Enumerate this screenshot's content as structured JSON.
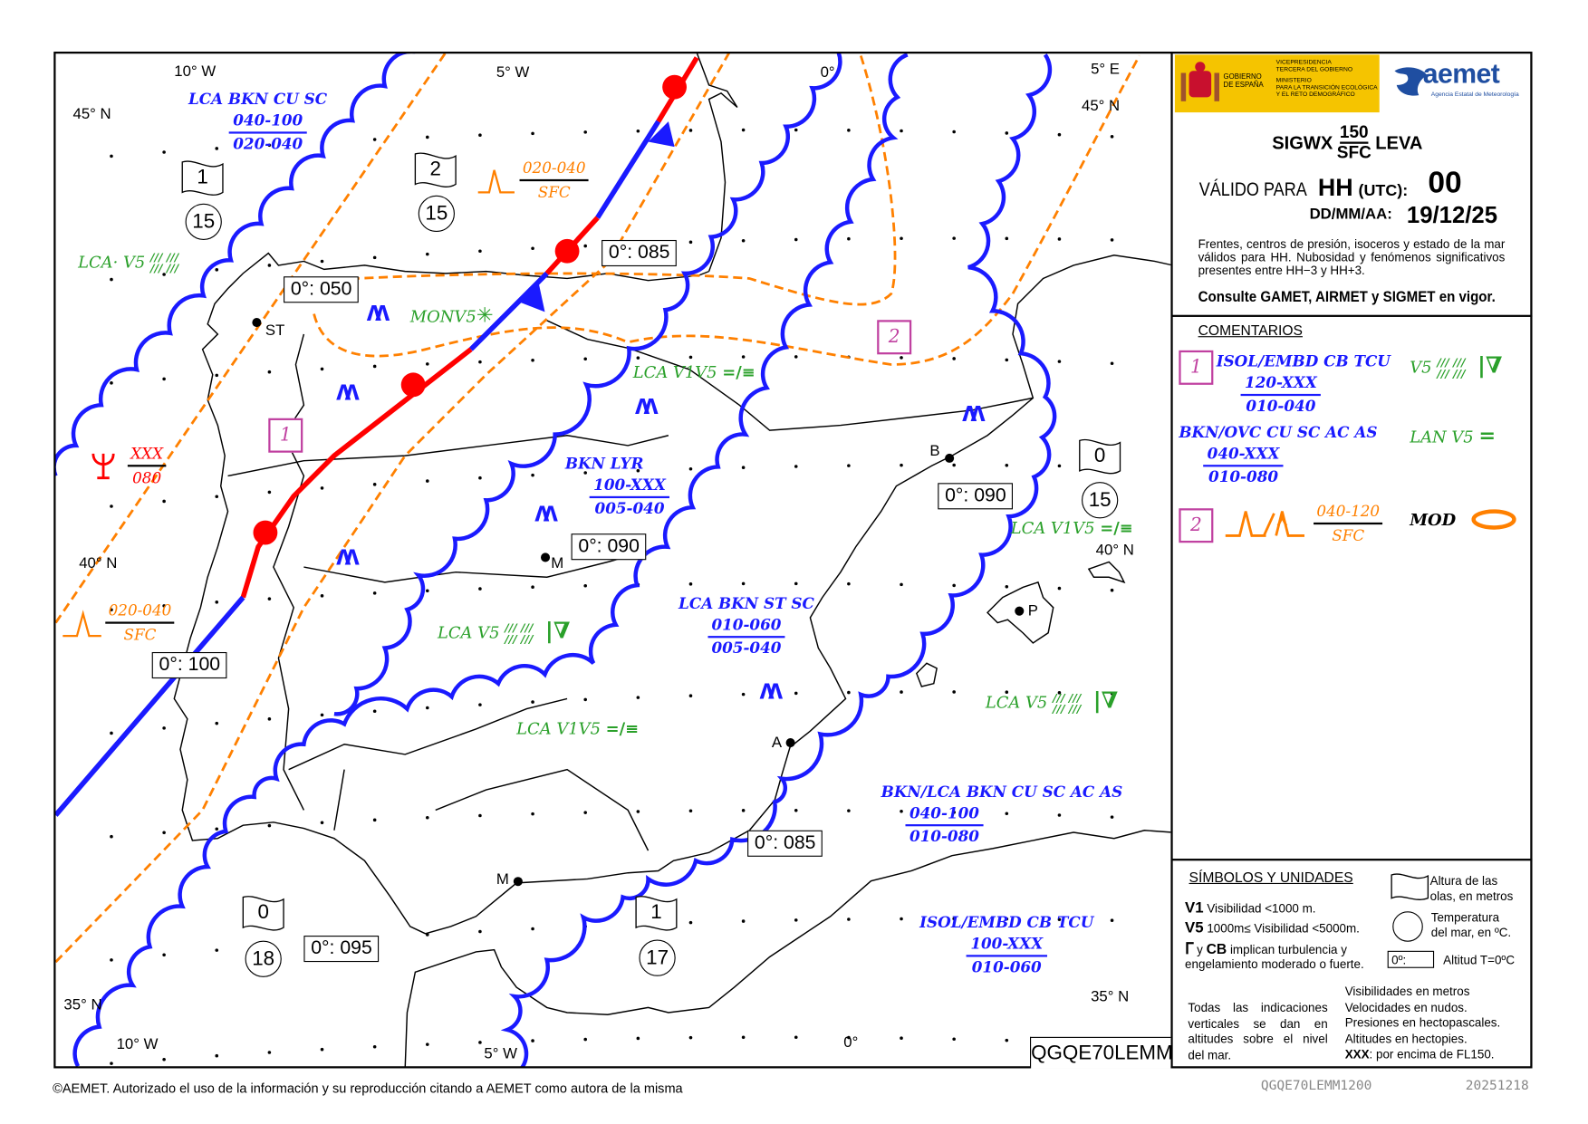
{
  "map": {
    "graticule": [
      "10° W",
      "5° W",
      "0°",
      "5° E",
      "45° N",
      "45° N",
      "40° N",
      "40° N",
      "35° N",
      "35° N",
      "10° W",
      "5° W",
      "0°"
    ],
    "cities": [
      "ST",
      "M",
      "B",
      "P",
      "A",
      "M"
    ],
    "freezing_levels": [
      "0°: 050",
      "0°: 085",
      "0°: 090",
      "0°: 090",
      "0°: 100",
      "0°: 085",
      "0°: 095"
    ],
    "sea_state": [
      {
        "wave": "1",
        "temp": "15"
      },
      {
        "wave": "2",
        "temp": "15"
      },
      {
        "wave": "0",
        "temp": "15"
      },
      {
        "wave": "0",
        "temp": "18"
      },
      {
        "wave": "1",
        "temp": "17"
      }
    ],
    "areas": [
      "1",
      "2"
    ],
    "clouds": [
      {
        "type": "LCA BKN CU SC",
        "top": "040-100",
        "base": "020-040"
      },
      {
        "type": "BKN LYR",
        "top": "100-XXX",
        "base": "005-040"
      },
      {
        "type": "LCA BKN ST SC",
        "top": "010-060",
        "base": "005-040"
      },
      {
        "type": "BKN/LCA BKN CU SC AC AS",
        "top": "040-100",
        "base": "010-080"
      },
      {
        "type": "ISOL/EMBD CB TCU",
        "top": "100-XXX",
        "base": "010-060"
      }
    ],
    "weather": [
      {
        "text": "LCA· V5",
        "symbol": "/// ///"
      },
      {
        "text": "MONV5",
        "symbol": "✳"
      },
      {
        "text": "LCA   V1V5",
        "symbol": "=/≡"
      },
      {
        "text": "LCA  V5",
        "symbol": "/// ///",
        "symbol2": "|∇"
      },
      {
        "text": "LCA   V1V5",
        "symbol": "=/≡"
      },
      {
        "text": "LCA   V1V5",
        "symbol": "=/≡"
      },
      {
        "text": "LCA  V5",
        "symbol": "/// ///",
        "symbol2": "|∇"
      }
    ],
    "turbulence": [
      {
        "top": "020-040",
        "base": "SFC"
      },
      {
        "top": "020-040",
        "base": "SFC"
      }
    ],
    "icing": {
      "top": "XXX",
      "base": "080"
    },
    "bulletin_code": "QGQE70LEMM",
    "colors": {
      "cloud_line": "#1a1aff",
      "warm_front": "#ff0000",
      "cold_front": "#1a1aff",
      "turbulence": "#ff8000",
      "weather": "#2aa02a",
      "area_box": "#c040a0"
    }
  },
  "panel": {
    "gov": {
      "line1": "GOBIERNO",
      "line2": "DE ESPAÑA",
      "vp1": "VICEPRESIDENCIA",
      "vp2": "TERCERA DEL GOBIERNO",
      "min1": "MINISTERIO",
      "min2": "PARA LA TRANSICIÓN ECOLÓGICA",
      "min3": "Y EL RETO DEMOGRÁFICO"
    },
    "aemet": {
      "name": "aemet",
      "subtitle": "Agencia Estatal de Meteorología"
    },
    "title": {
      "prefix": "SIGWX",
      "top": "150",
      "bottom": "SFC",
      "suffix": "LEVA"
    },
    "valid_label": "VÁLIDO PARA",
    "hh": "HH",
    "utc": "(UTC):",
    "hour": "00",
    "date_label": "DD/MM/AA:",
    "date": "19/12/25",
    "note": "Frentes, centros de presión, isoceros y estado de la mar válidos para HH. Nubosidad y fenómenos significativos presentes entre HH−3 y HH+3.",
    "consult": "Consulte GAMET, AIRMET y SIGMET en vigor.",
    "comments": {
      "heading": "COMENTARIOS",
      "area1": {
        "id": "1",
        "cloud": "ISOL/EMBD CB TCU",
        "top": "120-XXX",
        "base": "010-040",
        "wx": "V5",
        "symbol": "/// ///",
        "symbol2": "|∇"
      },
      "area1b": {
        "cloud": "BKN/OVC CU SC AC AS",
        "top": "040-XXX",
        "base": "010-080",
        "wx": "LAN   V5",
        "symbol": "="
      },
      "area2": {
        "id": "2",
        "top": "040-120",
        "base": "SFC",
        "intensity": "MOD"
      }
    },
    "symbols": {
      "heading": "SÍMBOLOS Y UNIDADES",
      "v1": "V1",
      "v1_text": "Visibilidad <1000 m.",
      "v5": "V5",
      "v5_text": "1000m≤ Visibilidad <5000m.",
      "cb_and": "y",
      "cb": "CB",
      "cb_text": "implican turbulencia y engelamiento moderado o fuerte.",
      "wave_text": "Altura de las olas, en metros",
      "temp_text": "Temperatura del mar, en ºC.",
      "fz_box": "0º:",
      "fz_text": "Altitud T=0ºC",
      "vertical": "Todas las indicaciones verticales se dan en altitudes sobre el nivel del mar.",
      "units": [
        "Visibilidades en metros",
        "Velocidades en nudos.",
        "Presiones en hectopascales.",
        "Altitudes en hectopies."
      ],
      "xxx": "XXX",
      "xxx_text": ": por encima de FL150."
    }
  },
  "footer": {
    "copyright": "©AEMET. Autorizado el uso de la información y su reproducción citando a AEMET como autora de la misma",
    "product": "QGQE70LEMM1200",
    "date": "20251218"
  }
}
